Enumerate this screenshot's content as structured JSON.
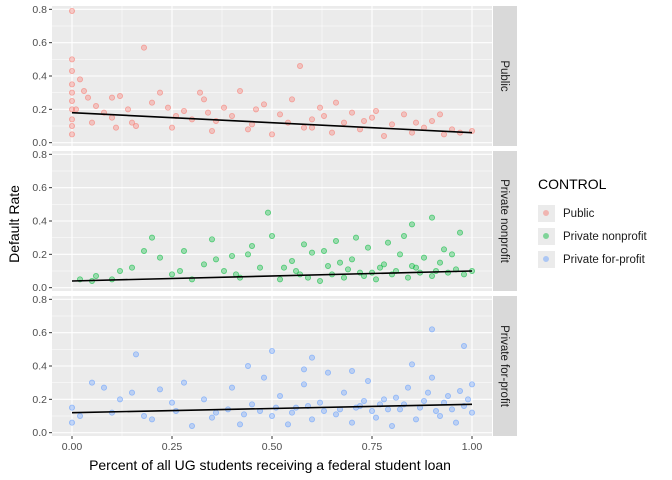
{
  "chart_data": {
    "type": "scatter",
    "xlabel": "Percent of all UG students receiving a federal student loan",
    "ylabel": "Default Rate",
    "xlim": [
      -0.05,
      1.05
    ],
    "ylim": [
      -0.02,
      0.82
    ],
    "x_ticks": [
      "0.00",
      "0.25",
      "0.50",
      "0.75",
      "1.00"
    ],
    "x_tick_values": [
      0,
      0.25,
      0.5,
      0.75,
      1.0
    ],
    "y_ticks": [
      "0.0",
      "0.2",
      "0.4",
      "0.6",
      "0.8"
    ],
    "y_tick_values": [
      0,
      0.2,
      0.4,
      0.6,
      0.8
    ],
    "legend_title": "CONTROL",
    "legend_position": "right",
    "grid": true,
    "facets": [
      {
        "strip_label": "Public",
        "series_name": "Public",
        "color": "#F8766D",
        "fit_line": {
          "x": [
            0,
            1
          ],
          "y": [
            0.18,
            0.06
          ]
        },
        "points": [
          [
            0,
            0.79
          ],
          [
            0,
            0.5
          ],
          [
            0,
            0.43
          ],
          [
            0,
            0.35
          ],
          [
            0,
            0.3
          ],
          [
            0,
            0.25
          ],
          [
            0,
            0.2
          ],
          [
            0,
            0.14
          ],
          [
            0,
            0.1
          ],
          [
            0,
            0.05
          ],
          [
            0.18,
            0.57
          ],
          [
            0.57,
            0.46
          ],
          [
            0.02,
            0.38
          ],
          [
            0.03,
            0.31
          ],
          [
            0.04,
            0.27
          ],
          [
            0.06,
            0.22
          ],
          [
            0.08,
            0.18
          ],
          [
            0.1,
            0.15
          ],
          [
            0.12,
            0.28
          ],
          [
            0.15,
            0.12
          ],
          [
            0.2,
            0.24
          ],
          [
            0.22,
            0.3
          ],
          [
            0.25,
            0.09
          ],
          [
            0.28,
            0.19
          ],
          [
            0.3,
            0.14
          ],
          [
            0.33,
            0.26
          ],
          [
            0.35,
            0.07
          ],
          [
            0.38,
            0.21
          ],
          [
            0.4,
            0.16
          ],
          [
            0.42,
            0.31
          ],
          [
            0.45,
            0.11
          ],
          [
            0.48,
            0.23
          ],
          [
            0.5,
            0.05
          ],
          [
            0.52,
            0.17
          ],
          [
            0.55,
            0.26
          ],
          [
            0.58,
            0.09
          ],
          [
            0.6,
            0.14
          ],
          [
            0.62,
            0.21
          ],
          [
            0.65,
            0.06
          ],
          [
            0.68,
            0.12
          ],
          [
            0.7,
            0.18
          ],
          [
            0.72,
            0.08
          ],
          [
            0.75,
            0.15
          ],
          [
            0.78,
            0.04
          ],
          [
            0.8,
            0.11
          ],
          [
            0.83,
            0.17
          ],
          [
            0.85,
            0.06
          ],
          [
            0.88,
            0.09
          ],
          [
            0.9,
            0.13
          ],
          [
            0.93,
            0.05
          ],
          [
            0.95,
            0.08
          ],
          [
            0.97,
            0.06
          ],
          [
            1.0,
            0.07
          ],
          [
            0.1,
            0.27
          ],
          [
            0.14,
            0.2
          ],
          [
            0.26,
            0.16
          ],
          [
            0.36,
            0.13
          ],
          [
            0.46,
            0.2
          ],
          [
            0.63,
            0.16
          ],
          [
            0.73,
            0.13
          ],
          [
            0.86,
            0.12
          ],
          [
            0.32,
            0.3
          ],
          [
            0.24,
            0.21
          ],
          [
            0.05,
            0.12
          ],
          [
            0.16,
            0.1
          ],
          [
            0.44,
            0.08
          ],
          [
            0.54,
            0.12
          ],
          [
            0.66,
            0.24
          ],
          [
            0.76,
            0.19
          ],
          [
            0.92,
            0.17
          ],
          [
            0.01,
            0.2
          ],
          [
            0.11,
            0.09
          ],
          [
            0.34,
            0.18
          ],
          [
            0.6,
            0.09
          ]
        ]
      },
      {
        "strip_label": "Private nonprofit",
        "series_name": "Private nonprofit",
        "color": "#00BA38",
        "fit_line": {
          "x": [
            0,
            1
          ],
          "y": [
            0.04,
            0.1
          ]
        },
        "points": [
          [
            0.49,
            0.45
          ],
          [
            0.9,
            0.42
          ],
          [
            0.85,
            0.38
          ],
          [
            0.06,
            0.07
          ],
          [
            0.1,
            0.05
          ],
          [
            0.15,
            0.12
          ],
          [
            0.2,
            0.3
          ],
          [
            0.22,
            0.18
          ],
          [
            0.25,
            0.08
          ],
          [
            0.28,
            0.22
          ],
          [
            0.3,
            0.05
          ],
          [
            0.33,
            0.14
          ],
          [
            0.35,
            0.29
          ],
          [
            0.38,
            0.1
          ],
          [
            0.4,
            0.19
          ],
          [
            0.42,
            0.06
          ],
          [
            0.45,
            0.25
          ],
          [
            0.47,
            0.12
          ],
          [
            0.5,
            0.31
          ],
          [
            0.52,
            0.05
          ],
          [
            0.55,
            0.16
          ],
          [
            0.57,
            0.08
          ],
          [
            0.6,
            0.21
          ],
          [
            0.62,
            0.04
          ],
          [
            0.64,
            0.13
          ],
          [
            0.66,
            0.28
          ],
          [
            0.68,
            0.06
          ],
          [
            0.7,
            0.17
          ],
          [
            0.72,
            0.09
          ],
          [
            0.74,
            0.24
          ],
          [
            0.76,
            0.05
          ],
          [
            0.78,
            0.14
          ],
          [
            0.8,
            0.08
          ],
          [
            0.82,
            0.2
          ],
          [
            0.84,
            0.06
          ],
          [
            0.86,
            0.12
          ],
          [
            0.88,
            0.18
          ],
          [
            0.9,
            0.07
          ],
          [
            0.92,
            0.15
          ],
          [
            0.94,
            0.09
          ],
          [
            0.96,
            0.11
          ],
          [
            0.98,
            0.08
          ],
          [
            1.0,
            0.1
          ],
          [
            0.58,
            0.26
          ],
          [
            0.63,
            0.22
          ],
          [
            0.71,
            0.3
          ],
          [
            0.79,
            0.27
          ],
          [
            0.83,
            0.31
          ],
          [
            0.93,
            0.23
          ],
          [
            0.97,
            0.33
          ],
          [
            0.44,
            0.2
          ],
          [
            0.36,
            0.17
          ],
          [
            0.18,
            0.22
          ],
          [
            0.12,
            0.1
          ],
          [
            0.56,
            0.1
          ],
          [
            0.69,
            0.11
          ],
          [
            0.75,
            0.09
          ],
          [
            0.81,
            0.1
          ],
          [
            0.87,
            0.09
          ],
          [
            0.73,
            0.07
          ],
          [
            0.65,
            0.08
          ],
          [
            0.59,
            0.06
          ],
          [
            0.77,
            0.12
          ],
          [
            0.91,
            0.1
          ],
          [
            0.05,
            0.04
          ],
          [
            0.02,
            0.05
          ],
          [
            0.27,
            0.1
          ],
          [
            0.41,
            0.08
          ],
          [
            0.53,
            0.12
          ],
          [
            0.67,
            0.15
          ],
          [
            0.85,
            0.13
          ],
          [
            0.95,
            0.2
          ]
        ]
      },
      {
        "strip_label": "Private for-profit",
        "series_name": "Private for-profit",
        "color": "#619CFF",
        "fit_line": {
          "x": [
            0,
            1
          ],
          "y": [
            0.12,
            0.17
          ]
        },
        "points": [
          [
            0.9,
            0.62
          ],
          [
            0.16,
            0.47
          ],
          [
            0.5,
            0.49
          ],
          [
            0.6,
            0.45
          ],
          [
            0.98,
            0.52
          ],
          [
            0.05,
            0.3
          ],
          [
            0.1,
            0.12
          ],
          [
            0.15,
            0.24
          ],
          [
            0.2,
            0.08
          ],
          [
            0.25,
            0.18
          ],
          [
            0.28,
            0.3
          ],
          [
            0.3,
            0.04
          ],
          [
            0.33,
            0.2
          ],
          [
            0.36,
            0.12
          ],
          [
            0.4,
            0.27
          ],
          [
            0.42,
            0.05
          ],
          [
            0.45,
            0.17
          ],
          [
            0.48,
            0.33
          ],
          [
            0.5,
            0.1
          ],
          [
            0.52,
            0.22
          ],
          [
            0.54,
            0.05
          ],
          [
            0.56,
            0.15
          ],
          [
            0.58,
            0.29
          ],
          [
            0.6,
            0.08
          ],
          [
            0.62,
            0.18
          ],
          [
            0.64,
            0.36
          ],
          [
            0.66,
            0.11
          ],
          [
            0.68,
            0.24
          ],
          [
            0.7,
            0.06
          ],
          [
            0.72,
            0.16
          ],
          [
            0.74,
            0.31
          ],
          [
            0.76,
            0.09
          ],
          [
            0.78,
            0.2
          ],
          [
            0.8,
            0.04
          ],
          [
            0.82,
            0.14
          ],
          [
            0.84,
            0.27
          ],
          [
            0.86,
            0.08
          ],
          [
            0.88,
            0.19
          ],
          [
            0.9,
            0.33
          ],
          [
            0.92,
            0.1
          ],
          [
            0.94,
            0.22
          ],
          [
            0.96,
            0.06
          ],
          [
            0.98,
            0.16
          ],
          [
            1.0,
            0.29
          ],
          [
            1.0,
            0.12
          ],
          [
            0.99,
            0.2
          ],
          [
            0.97,
            0.25
          ],
          [
            0.95,
            0.14
          ],
          [
            0.93,
            0.18
          ],
          [
            0.91,
            0.13
          ],
          [
            0.87,
            0.15
          ],
          [
            0.83,
            0.17
          ],
          [
            0.79,
            0.14
          ],
          [
            0.75,
            0.13
          ],
          [
            0.71,
            0.15
          ],
          [
            0.67,
            0.14
          ],
          [
            0.63,
            0.13
          ],
          [
            0.59,
            0.16
          ],
          [
            0.55,
            0.12
          ],
          [
            0.51,
            0.15
          ],
          [
            0.47,
            0.13
          ],
          [
            0.43,
            0.11
          ],
          [
            0.39,
            0.14
          ],
          [
            0.35,
            0.09
          ],
          [
            0.0,
            0.15
          ],
          [
            0.0,
            0.06
          ],
          [
            0.02,
            0.1
          ],
          [
            0.08,
            0.27
          ],
          [
            0.12,
            0.2
          ],
          [
            0.18,
            0.1
          ],
          [
            0.22,
            0.26
          ],
          [
            0.26,
            0.13
          ],
          [
            0.44,
            0.4
          ],
          [
            0.58,
            0.38
          ],
          [
            0.7,
            0.37
          ],
          [
            0.85,
            0.41
          ],
          [
            0.77,
            0.17
          ],
          [
            0.81,
            0.21
          ],
          [
            0.89,
            0.24
          ],
          [
            0.73,
            0.19
          ]
        ]
      }
    ]
  }
}
